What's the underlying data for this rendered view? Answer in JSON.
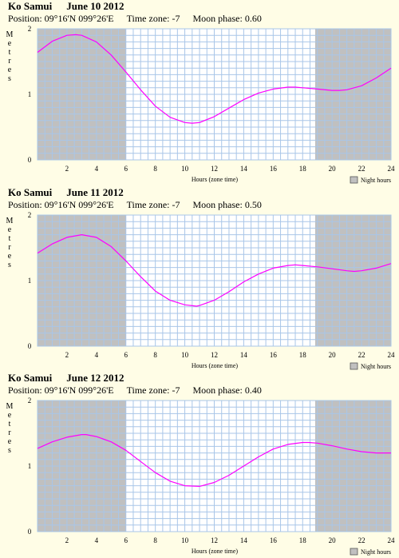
{
  "colors": {
    "background": "#fffde6",
    "plot_day": "#ffffff",
    "plot_night": "#c0c0c0",
    "grid": "#a9c6e8",
    "curve": "#ff00ff"
  },
  "panels": [
    {
      "location": "Ko Samui",
      "date": "June 10 2012",
      "position": "Position: 09°16'N 099°26'E",
      "timezone": "Time zone: -7",
      "moon": "Moon phase: 0.60",
      "ylabel": "Metres",
      "xlabel": "Hours (zone time)",
      "legend": "Night hours"
    },
    {
      "location": "Ko Samui",
      "date": "June 11 2012",
      "position": "Position: 09°16'N 099°26'E",
      "timezone": "Time zone: -7",
      "moon": "Moon phase: 0.50",
      "ylabel": "Metres",
      "xlabel": "Hours (zone time)",
      "legend": "Night hours"
    },
    {
      "location": "Ko Samui",
      "date": "June 12 2012",
      "position": "Position: 09°16'N 099°26'E",
      "timezone": "Time zone: -7",
      "moon": "Moon phase: 0.40",
      "ylabel": "Metres",
      "xlabel": "Hours (zone time)",
      "legend": "Night hours"
    }
  ],
  "chart_data": [
    {
      "type": "line",
      "title": "Ko Samui June 10 2012",
      "xlabel": "Hours (zone time)",
      "ylabel": "Metres",
      "xlim": [
        0,
        24
      ],
      "ylim": [
        0,
        2
      ],
      "xticks": [
        2,
        4,
        6,
        8,
        10,
        12,
        14,
        16,
        18,
        20,
        22,
        24
      ],
      "yticks": [
        0,
        1,
        2
      ],
      "night_hours": [
        [
          0,
          6
        ],
        [
          18.85,
          24
        ]
      ],
      "series": [
        {
          "x": [
            0,
            1,
            2,
            2.6,
            3,
            4,
            5,
            6,
            7,
            8,
            9,
            10,
            10.5,
            11,
            12,
            13,
            14,
            15,
            16,
            17,
            17.5,
            18,
            19,
            20,
            20.5,
            21,
            22,
            23,
            24
          ],
          "values": [
            1.64,
            1.81,
            1.9,
            1.91,
            1.9,
            1.8,
            1.6,
            1.34,
            1.07,
            0.82,
            0.65,
            0.57,
            0.56,
            0.57,
            0.66,
            0.79,
            0.92,
            1.02,
            1.08,
            1.11,
            1.11,
            1.1,
            1.08,
            1.06,
            1.06,
            1.07,
            1.13,
            1.25,
            1.4
          ]
        }
      ]
    },
    {
      "type": "line",
      "title": "Ko Samui June 11 2012",
      "xlabel": "Hours (zone time)",
      "ylabel": "Metres",
      "xlim": [
        0,
        24
      ],
      "ylim": [
        0,
        2
      ],
      "xticks": [
        2,
        4,
        6,
        8,
        10,
        12,
        14,
        16,
        18,
        20,
        22,
        24
      ],
      "yticks": [
        0,
        1,
        2
      ],
      "night_hours": [
        [
          0,
          6
        ],
        [
          18.85,
          24
        ]
      ],
      "series": [
        {
          "x": [
            0,
            1,
            2,
            3,
            4,
            5,
            6,
            7,
            8,
            9,
            10,
            10.8,
            11,
            12,
            13,
            14,
            15,
            16,
            17,
            17.5,
            18,
            19,
            20,
            21,
            21.5,
            22,
            23,
            24
          ],
          "values": [
            1.42,
            1.56,
            1.66,
            1.7,
            1.66,
            1.52,
            1.3,
            1.06,
            0.84,
            0.7,
            0.63,
            0.61,
            0.62,
            0.7,
            0.83,
            0.98,
            1.1,
            1.19,
            1.23,
            1.24,
            1.23,
            1.21,
            1.18,
            1.15,
            1.14,
            1.15,
            1.19,
            1.26
          ]
        }
      ]
    },
    {
      "type": "line",
      "title": "Ko Samui June 12 2012",
      "xlabel": "Hours (zone time)",
      "ylabel": "Metres",
      "xlim": [
        0,
        24
      ],
      "ylim": [
        0,
        2
      ],
      "xticks": [
        2,
        4,
        6,
        8,
        10,
        12,
        14,
        16,
        18,
        20,
        22,
        24
      ],
      "yticks": [
        0,
        1,
        2
      ],
      "night_hours": [
        [
          0,
          6
        ],
        [
          18.85,
          24
        ]
      ],
      "series": [
        {
          "x": [
            0,
            1,
            2,
            3,
            3.3,
            4,
            5,
            6,
            7,
            8,
            9,
            10,
            11,
            12,
            13,
            14,
            15,
            16,
            17,
            18,
            18.4,
            19,
            20,
            21,
            22,
            23,
            24
          ],
          "values": [
            1.27,
            1.37,
            1.44,
            1.48,
            1.48,
            1.45,
            1.37,
            1.24,
            1.07,
            0.9,
            0.77,
            0.7,
            0.69,
            0.75,
            0.86,
            1.0,
            1.14,
            1.26,
            1.33,
            1.36,
            1.36,
            1.35,
            1.31,
            1.26,
            1.22,
            1.2,
            1.2
          ]
        }
      ]
    }
  ]
}
